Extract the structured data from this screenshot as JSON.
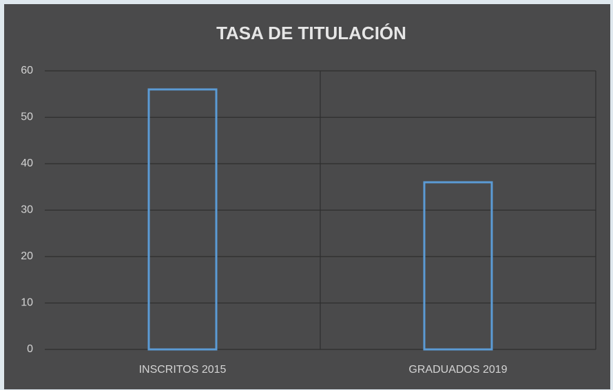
{
  "chart_data": {
    "type": "bar",
    "title": "TASA DE TITULACIÓN",
    "categories": [
      "INSCRITOS 2015",
      "GRADUADOS 2019"
    ],
    "values": [
      56,
      36
    ],
    "color": "#5b9bd5",
    "ylim": [
      0,
      60
    ],
    "yticks": [
      0,
      10,
      20,
      30,
      40,
      50,
      60
    ],
    "grid": true
  }
}
